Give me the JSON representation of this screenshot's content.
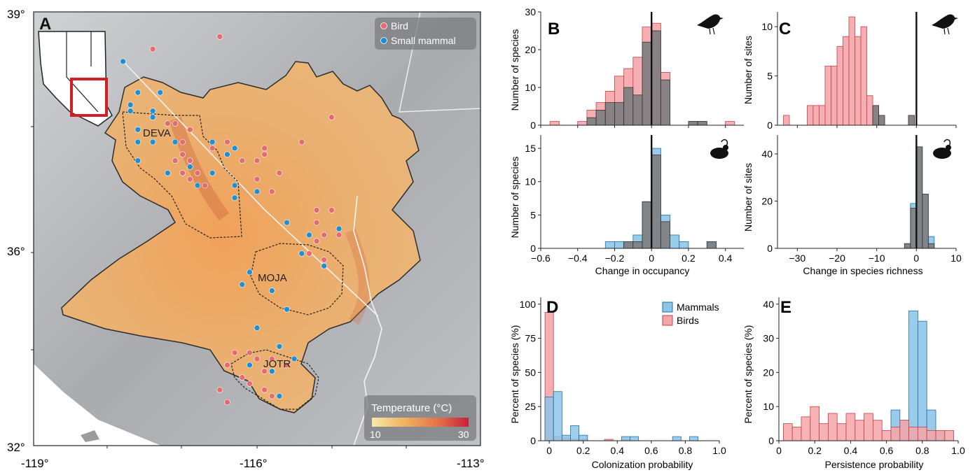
{
  "chart_data": [
    {
      "panel": "A",
      "type": "map",
      "x_ticks": [
        "-119°",
        "-116°",
        "-113°"
      ],
      "y_ticks": [
        "39°",
        "36°",
        "32°"
      ],
      "x_range": [
        -119,
        -113
      ],
      "y_range": [
        32,
        39
      ],
      "region_labels": [
        "DEVA",
        "MOJA",
        "JOTR"
      ],
      "legend": [
        {
          "label": "Bird",
          "color": "#e8696f"
        },
        {
          "label": "Small mammal",
          "color": "#1f8fd1"
        }
      ],
      "colorbar": {
        "title": "Temperature (°C)",
        "min_label": "10",
        "max_label": "30",
        "range": [
          10,
          30
        ],
        "colors": [
          "#f7e9a8",
          "#f0b060",
          "#e07048",
          "#c8203a"
        ]
      },
      "bird_points": [
        [
          -117.4,
          38.4
        ],
        [
          -116.5,
          38.6
        ],
        [
          -117.2,
          37.2
        ],
        [
          -117.1,
          37.2
        ],
        [
          -116.9,
          37.1
        ],
        [
          -117.1,
          36.6
        ],
        [
          -116.9,
          36.6
        ],
        [
          -117.0,
          36.9
        ],
        [
          -117.0,
          36.7
        ],
        [
          -116.6,
          36.8
        ],
        [
          -116.4,
          36.9
        ],
        [
          -116.2,
          36.6
        ],
        [
          -117.0,
          36.4
        ],
        [
          -116.8,
          36.4
        ],
        [
          -116.0,
          36.6
        ],
        [
          -115.9,
          36.8
        ],
        [
          -115.7,
          36.4
        ],
        [
          -116.0,
          36.3
        ],
        [
          -115.9,
          36.7
        ],
        [
          -115.8,
          36.1
        ],
        [
          -115.0,
          37.3
        ],
        [
          -115.4,
          36.9
        ],
        [
          -116.9,
          36.3
        ],
        [
          -116.7,
          36.2
        ],
        [
          -115.2,
          35.8
        ],
        [
          -115.2,
          35.6
        ],
        [
          -115.1,
          35.4
        ],
        [
          -115.2,
          35.3
        ],
        [
          -115.1,
          35.0
        ],
        [
          -115.3,
          35.1
        ],
        [
          -114.9,
          35.4
        ],
        [
          -115.0,
          35.8
        ],
        [
          -116.3,
          33.5
        ],
        [
          -116.1,
          33.5
        ],
        [
          -116.0,
          33.4
        ],
        [
          -115.8,
          33.4
        ],
        [
          -115.6,
          33.3
        ],
        [
          -115.9,
          33.2
        ],
        [
          -116.4,
          33.3
        ],
        [
          -116.2,
          33.1
        ],
        [
          -116.1,
          33.0
        ],
        [
          -115.9,
          32.9
        ],
        [
          -115.8,
          32.8
        ],
        [
          -116.5,
          32.9
        ],
        [
          -116.4,
          32.7
        ]
      ],
      "mammal_points": [
        [
          -117.8,
          38.2
        ],
        [
          -117.6,
          37.7
        ],
        [
          -117.7,
          37.5
        ],
        [
          -117.7,
          37.4
        ],
        [
          -117.6,
          37.1
        ],
        [
          -117.6,
          36.9
        ],
        [
          -117.6,
          36.6
        ],
        [
          -117.4,
          37.3
        ],
        [
          -117.3,
          37.7
        ],
        [
          -117.4,
          36.9
        ],
        [
          -117.4,
          37.4
        ],
        [
          -117.1,
          36.9
        ],
        [
          -117.2,
          36.4
        ],
        [
          -117.0,
          36.4
        ],
        [
          -116.9,
          36.5
        ],
        [
          -116.8,
          36.2
        ],
        [
          -116.6,
          36.4
        ],
        [
          -116.6,
          36.9
        ],
        [
          -116.3,
          36.8
        ],
        [
          -116.4,
          36.7
        ],
        [
          -116.3,
          36.2
        ],
        [
          -116.3,
          36.0
        ],
        [
          -116.0,
          36.1
        ],
        [
          -115.6,
          35.6
        ],
        [
          -115.3,
          35.4
        ],
        [
          -115.2,
          35.3
        ],
        [
          -115.4,
          35.1
        ],
        [
          -115.1,
          34.9
        ],
        [
          -114.9,
          35.5
        ],
        [
          -116.2,
          34.6
        ],
        [
          -116.1,
          34.8
        ],
        [
          -115.8,
          34.5
        ],
        [
          -115.6,
          34.2
        ],
        [
          -116.0,
          33.9
        ],
        [
          -115.7,
          33.6
        ],
        [
          -116.1,
          33.3
        ],
        [
          -115.8,
          33.2
        ],
        [
          -115.5,
          33.4
        ],
        [
          -115.7,
          32.8
        ]
      ]
    },
    {
      "panel": "B",
      "type": "bar",
      "subtype": "histogram",
      "title": "",
      "xlabel": "Change in occupancy",
      "x_tick_labels": [
        "−0.6",
        "−0.4",
        "−0.2",
        "0",
        "0.2",
        "0.4"
      ],
      "xlim": [
        -0.6,
        0.5
      ],
      "bin_width": 0.05,
      "panels": [
        {
          "taxon": "Birds",
          "icon": "bird-silhouette",
          "ylabel": "Number of species",
          "ylim": [
            0,
            30
          ],
          "y_tick_labels": [
            "0",
            "10",
            "20",
            "30"
          ],
          "bin_starts": [
            -0.55,
            -0.4,
            -0.35,
            -0.3,
            -0.25,
            -0.2,
            -0.15,
            -0.1,
            -0.05,
            0.0,
            0.05,
            0.1,
            0.15,
            0.2,
            0.25,
            0.3,
            0.35,
            0.4
          ],
          "series": [
            {
              "name": "Birds",
              "color": "#f4a5a8",
              "values": [
                1,
                1,
                4,
                6,
                9,
                13,
                15,
                18,
                26,
                27,
                14,
                0,
                0,
                1,
                1,
                0,
                0,
                1
              ]
            },
            {
              "name": "Birds",
              "color": "#7d7d80",
              "values": [
                0,
                0,
                2,
                4,
                6,
                6,
                10,
                8,
                22,
                25,
                12,
                0,
                0,
                1,
                1,
                0,
                0,
                0
              ]
            }
          ]
        },
        {
          "taxon": "Mammals",
          "icon": "mouse-silhouette",
          "ylabel": "Number of species",
          "ylim": [
            0,
            17
          ],
          "y_tick_labels": [
            "0",
            "5",
            "10",
            "15"
          ],
          "bin_starts": [
            -0.25,
            -0.2,
            -0.15,
            -0.1,
            -0.05,
            0.0,
            0.05,
            0.1,
            0.15,
            0.2,
            0.25,
            0.3
          ],
          "series": [
            {
              "name": "Mammals",
              "color": "#8dc6e8",
              "values": [
                1,
                1,
                1,
                2,
                7,
                15,
                5,
                2,
                1,
                0,
                0,
                1
              ]
            },
            {
              "name": "Mammals",
              "color": "#7d7d80",
              "values": [
                0,
                0,
                1,
                1,
                7,
                14,
                4,
                0,
                0,
                0,
                0,
                1
              ]
            }
          ]
        }
      ]
    },
    {
      "panel": "C",
      "type": "bar",
      "subtype": "histogram",
      "title": "",
      "xlabel": "Change in species richness",
      "x_tick_labels": [
        "−30",
        "−20",
        "−10",
        "0",
        "10"
      ],
      "xlim": [
        -35,
        10
      ],
      "bin_width": 1.5,
      "panels": [
        {
          "taxon": "Birds",
          "icon": "bird-silhouette",
          "ylabel": "Number of sites",
          "ylim": [
            0,
            11.5
          ],
          "y_tick_labels": [
            "0",
            "5",
            "10"
          ],
          "bin_starts": [
            -33.5,
            -29,
            -27.5,
            -26,
            -24.5,
            -23,
            -21.5,
            -20,
            -18.5,
            -17,
            -15.5,
            -14,
            -12.5,
            -11,
            -9.5,
            -8,
            -6.5,
            -5,
            -3.5,
            -2
          ],
          "series": [
            {
              "name": "Birds",
              "color": "#f4a5a8",
              "values": [
                1,
                0,
                2,
                2,
                2,
                6,
                6,
                8,
                9,
                11,
                9,
                10,
                3,
                2,
                1,
                0,
                0,
                0,
                0,
                1
              ]
            },
            {
              "name": "Birds",
              "color": "#7d7d80",
              "values": [
                0,
                0,
                0,
                0,
                0,
                0,
                0,
                0,
                0,
                0,
                0,
                0,
                0,
                2,
                1,
                0,
                0,
                0,
                0,
                1
              ]
            }
          ]
        },
        {
          "taxon": "Mammals",
          "icon": "mouse-silhouette",
          "ylabel": "Number of sites",
          "ylim": [
            0,
            48
          ],
          "y_tick_labels": [
            "0",
            "20",
            "40"
          ],
          "bin_starts": [
            -3,
            -1.5,
            0,
            1.5,
            3
          ],
          "series": [
            {
              "name": "Mammals",
              "color": "#8dc6e8",
              "values": [
                2,
                19,
                43,
                23,
                5
              ]
            },
            {
              "name": "Mammals",
              "color": "#7d7d80",
              "values": [
                2,
                17,
                43,
                23,
                2
              ]
            }
          ]
        }
      ]
    },
    {
      "panel": "D",
      "type": "bar",
      "subtype": "histogram",
      "title": "",
      "xlabel": "Colonization probability",
      "ylabel": "Percent of species (%)",
      "xlim": [
        -0.05,
        1.0
      ],
      "ylim": [
        0,
        105
      ],
      "x_tick_labels": [
        "0",
        "0.2",
        "0.4",
        "0.6",
        "0.8",
        "1.0"
      ],
      "y_tick_labels": [
        "0",
        "25",
        "50",
        "75",
        "100"
      ],
      "bin_width": 0.05,
      "bin_starts": [
        -0.025,
        0.025,
        0.075,
        0.125,
        0.175,
        0.225,
        0.275,
        0.325,
        0.375,
        0.425,
        0.475,
        0.525,
        0.575,
        0.625,
        0.675,
        0.725,
        0.775,
        0.825,
        0.875,
        0.925
      ],
      "legend_position": "top-right",
      "series": [
        {
          "name": "Mammals",
          "color": "#8dc6e8",
          "values": [
            32,
            36,
            4,
            11,
            4,
            0,
            0,
            0,
            0,
            3,
            3,
            0,
            0,
            0,
            0,
            3,
            0,
            3,
            0,
            0
          ]
        },
        {
          "name": "Birds",
          "color": "#f4a5a8",
          "values": [
            94,
            3,
            2,
            1,
            1,
            0,
            0,
            1,
            0,
            1,
            0,
            0,
            0,
            0,
            0,
            0,
            0,
            0,
            0,
            0
          ]
        }
      ]
    },
    {
      "panel": "E",
      "type": "bar",
      "subtype": "histogram",
      "title": "",
      "xlabel": "Persistence probability",
      "ylabel": "Percent of species (%)",
      "xlim": [
        0,
        1.0
      ],
      "ylim": [
        0,
        42
      ],
      "x_tick_labels": [
        "0",
        "0.2",
        "0.4",
        "0.6",
        "0.8",
        "1.0"
      ],
      "y_tick_labels": [
        "0",
        "10",
        "20",
        "30",
        "40"
      ],
      "bin_width": 0.05,
      "bin_starts": [
        0.025,
        0.075,
        0.125,
        0.175,
        0.225,
        0.275,
        0.325,
        0.375,
        0.425,
        0.475,
        0.525,
        0.575,
        0.625,
        0.675,
        0.725,
        0.775,
        0.825,
        0.875,
        0.925
      ],
      "series": [
        {
          "name": "Mammals",
          "color": "#8dc6e8",
          "values": [
            0,
            0,
            0,
            0,
            0,
            0,
            0,
            0,
            0,
            0,
            0,
            0,
            9,
            6,
            38,
            35,
            9,
            3,
            0
          ]
        },
        {
          "name": "Birds",
          "color": "#f4a5a8",
          "values": [
            5,
            4,
            7,
            10,
            5,
            8,
            5,
            8,
            6,
            8,
            6,
            3,
            4,
            6,
            4,
            4,
            3,
            3,
            3
          ]
        }
      ]
    }
  ]
}
